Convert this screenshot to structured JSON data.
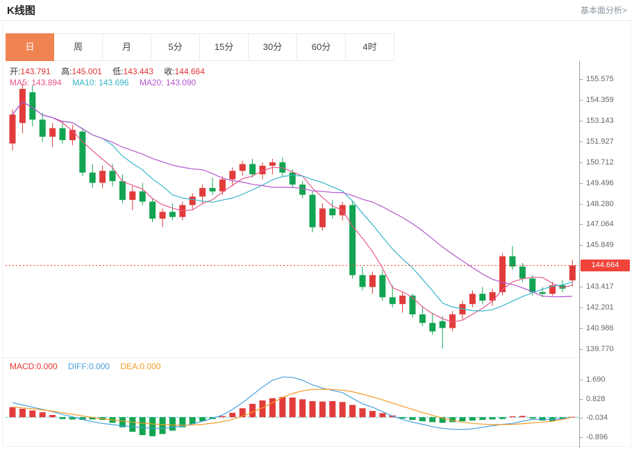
{
  "header": {
    "title": "K线图",
    "link_label": "基本面分析>"
  },
  "tabs": {
    "active_index": 0,
    "items": [
      {
        "label": "日"
      },
      {
        "label": "周"
      },
      {
        "label": "月"
      },
      {
        "label": "5分"
      },
      {
        "label": "15分"
      },
      {
        "label": "30分"
      },
      {
        "label": "60分"
      },
      {
        "label": "4时"
      }
    ]
  },
  "legend": {
    "ohlc": {
      "open_label": "开:",
      "open_value": "143.791",
      "high_label": "高:",
      "high_value": "145.001",
      "low_label": "低:",
      "low_value": "143.443",
      "close_label": "收:",
      "close_value": "144.664"
    },
    "ma": {
      "ma5_label": "MA5: ",
      "ma5_value": "143.894",
      "ma10_label": "MA10: ",
      "ma10_value": "143.696",
      "ma20_label": "MA20: ",
      "ma20_value": "143.090"
    },
    "macd": {
      "macd_label": "MACD:",
      "macd_value": "0.000",
      "diff_label": "DIFF:",
      "diff_value": "0.000",
      "dea_label": "DEA:",
      "dea_value": "0.000"
    }
  },
  "colors": {
    "up": "#e23b3b",
    "down": "#12a452",
    "ma5": "#e8558a",
    "ma10": "#35b5c9",
    "ma20": "#b356cc",
    "diff_line": "#48a0dc",
    "dea_line": "#f59a23",
    "price_line": "#ff3b30",
    "badge_bg": "#f0433a",
    "zero_line": "#3ec6d8",
    "tab_active": "#f08352"
  },
  "chart_data": [
    {
      "type": "candlestick",
      "title": "K线图",
      "y_domain": [
        139.28,
        156.63
      ],
      "current_price": 144.664,
      "y_ticks": [
        155.575,
        154.359,
        153.143,
        151.927,
        150.712,
        149.496,
        148.28,
        147.064,
        145.849,
        143.417,
        142.201,
        140.986,
        139.77
      ],
      "ma_periods": [
        5,
        10,
        20
      ],
      "candles": [
        [
          151.8,
          153.8,
          151.4,
          153.5
        ],
        [
          153.0,
          155.3,
          152.4,
          155.0
        ],
        [
          154.8,
          155.2,
          152.8,
          153.2
        ],
        [
          153.2,
          153.6,
          151.9,
          152.2
        ],
        [
          152.2,
          153.0,
          151.6,
          152.7
        ],
        [
          152.7,
          153.1,
          151.8,
          152.0
        ],
        [
          152.0,
          152.9,
          151.7,
          152.6
        ],
        [
          152.5,
          152.7,
          149.9,
          150.1
        ],
        [
          150.1,
          150.6,
          149.2,
          149.5
        ],
        [
          149.5,
          150.5,
          149.2,
          150.2
        ],
        [
          150.2,
          150.6,
          149.3,
          149.6
        ],
        [
          149.6,
          150.0,
          148.3,
          148.5
        ],
        [
          148.5,
          149.3,
          147.9,
          149.0
        ],
        [
          149.0,
          149.5,
          148.2,
          148.4
        ],
        [
          148.4,
          148.6,
          147.2,
          147.4
        ],
        [
          147.4,
          148.0,
          146.9,
          147.8
        ],
        [
          147.8,
          148.3,
          147.3,
          147.5
        ],
        [
          147.5,
          148.4,
          147.3,
          148.2
        ],
        [
          148.2,
          148.9,
          147.9,
          148.7
        ],
        [
          148.7,
          149.4,
          148.3,
          149.2
        ],
        [
          149.2,
          149.8,
          148.8,
          149.0
        ],
        [
          149.0,
          149.9,
          148.8,
          149.7
        ],
        [
          149.7,
          150.4,
          149.3,
          150.2
        ],
        [
          150.2,
          150.8,
          149.9,
          150.6
        ],
        [
          150.6,
          150.9,
          149.8,
          150.0
        ],
        [
          150.0,
          150.7,
          149.7,
          150.5
        ],
        [
          150.5,
          150.9,
          150.0,
          150.7
        ],
        [
          150.7,
          151.0,
          149.9,
          150.1
        ],
        [
          150.1,
          150.3,
          149.2,
          149.4
        ],
        [
          149.4,
          149.6,
          148.6,
          148.8
        ],
        [
          148.8,
          149.0,
          146.6,
          146.9
        ],
        [
          146.9,
          148.3,
          146.7,
          148.0
        ],
        [
          148.0,
          148.5,
          147.4,
          147.6
        ],
        [
          147.6,
          148.4,
          147.3,
          148.2
        ],
        [
          148.2,
          148.4,
          143.9,
          144.1
        ],
        [
          144.1,
          144.6,
          143.2,
          143.4
        ],
        [
          143.4,
          144.3,
          143.0,
          144.1
        ],
        [
          144.1,
          144.4,
          142.6,
          142.8
        ],
        [
          142.8,
          143.5,
          142.2,
          142.4
        ],
        [
          142.4,
          143.1,
          141.9,
          142.9
        ],
        [
          142.9,
          143.0,
          141.6,
          141.8
        ],
        [
          141.8,
          142.3,
          141.1,
          141.3
        ],
        [
          141.3,
          141.9,
          140.6,
          140.8
        ],
        [
          141.4,
          141.7,
          139.8,
          141.0
        ],
        [
          141.0,
          142.0,
          140.8,
          141.8
        ],
        [
          141.8,
          142.6,
          141.5,
          142.4
        ],
        [
          142.4,
          143.2,
          142.2,
          143.0
        ],
        [
          143.0,
          143.4,
          142.4,
          142.6
        ],
        [
          142.6,
          143.3,
          142.3,
          143.1
        ],
        [
          143.1,
          145.4,
          142.9,
          145.2
        ],
        [
          145.2,
          145.8,
          144.4,
          144.6
        ],
        [
          144.6,
          144.8,
          143.7,
          143.9
        ],
        [
          143.9,
          144.1,
          142.9,
          143.1
        ],
        [
          143.1,
          143.4,
          142.8,
          143.0
        ],
        [
          143.0,
          143.7,
          142.9,
          143.5
        ],
        [
          143.5,
          143.8,
          143.1,
          143.3
        ],
        [
          143.791,
          145.001,
          143.443,
          144.664
        ]
      ]
    },
    {
      "type": "bar",
      "name": "MACD",
      "y_domain": [
        -1.327,
        2.581
      ],
      "y_ticks": [
        1.69,
        0.828,
        -0.034,
        -0.896
      ],
      "hist": [
        0.45,
        0.38,
        0.3,
        0.22,
        0.1,
        -0.08,
        -0.1,
        -0.12,
        -0.1,
        -0.12,
        -0.25,
        -0.45,
        -0.65,
        -0.8,
        -0.85,
        -0.75,
        -0.6,
        -0.45,
        -0.3,
        -0.18,
        -0.08,
        0.05,
        0.2,
        0.4,
        0.6,
        0.75,
        0.85,
        0.9,
        0.88,
        0.8,
        0.72,
        0.7,
        0.72,
        0.68,
        0.55,
        0.4,
        0.28,
        0.18,
        0.08,
        -0.06,
        -0.12,
        -0.18,
        -0.22,
        -0.25,
        -0.22,
        -0.18,
        -0.15,
        -0.12,
        -0.1,
        -0.08,
        0.04,
        0.06,
        -0.06,
        -0.15,
        -0.18,
        -0.08,
        0.02
      ],
      "diff": [
        0.65,
        0.55,
        0.45,
        0.35,
        0.25,
        0.12,
        0.02,
        -0.1,
        -0.2,
        -0.28,
        -0.33,
        -0.38,
        -0.42,
        -0.46,
        -0.5,
        -0.5,
        -0.46,
        -0.4,
        -0.3,
        -0.18,
        -0.05,
        0.1,
        0.35,
        0.65,
        1.0,
        1.35,
        1.65,
        1.8,
        1.78,
        1.65,
        1.45,
        1.3,
        1.2,
        1.1,
        0.85,
        0.6,
        0.45,
        0.25,
        0.05,
        -0.1,
        -0.22,
        -0.32,
        -0.42,
        -0.5,
        -0.54,
        -0.55,
        -0.52,
        -0.45,
        -0.38,
        -0.32,
        -0.28,
        -0.18,
        -0.1,
        -0.1,
        -0.1,
        -0.06,
        0.0
      ],
      "dea": [
        0.45,
        0.42,
        0.38,
        0.33,
        0.27,
        0.2,
        0.13,
        0.06,
        -0.01,
        -0.07,
        -0.12,
        -0.17,
        -0.22,
        -0.26,
        -0.3,
        -0.33,
        -0.35,
        -0.36,
        -0.35,
        -0.32,
        -0.27,
        -0.2,
        -0.1,
        0.05,
        0.22,
        0.42,
        0.65,
        0.88,
        1.06,
        1.18,
        1.24,
        1.25,
        1.24,
        1.21,
        1.14,
        1.03,
        0.91,
        0.78,
        0.63,
        0.49,
        0.35,
        0.21,
        0.08,
        -0.04,
        -0.14,
        -0.22,
        -0.28,
        -0.31,
        -0.33,
        -0.33,
        -0.32,
        -0.29,
        -0.25,
        -0.22,
        -0.18,
        -0.1,
        0.0
      ]
    }
  ]
}
